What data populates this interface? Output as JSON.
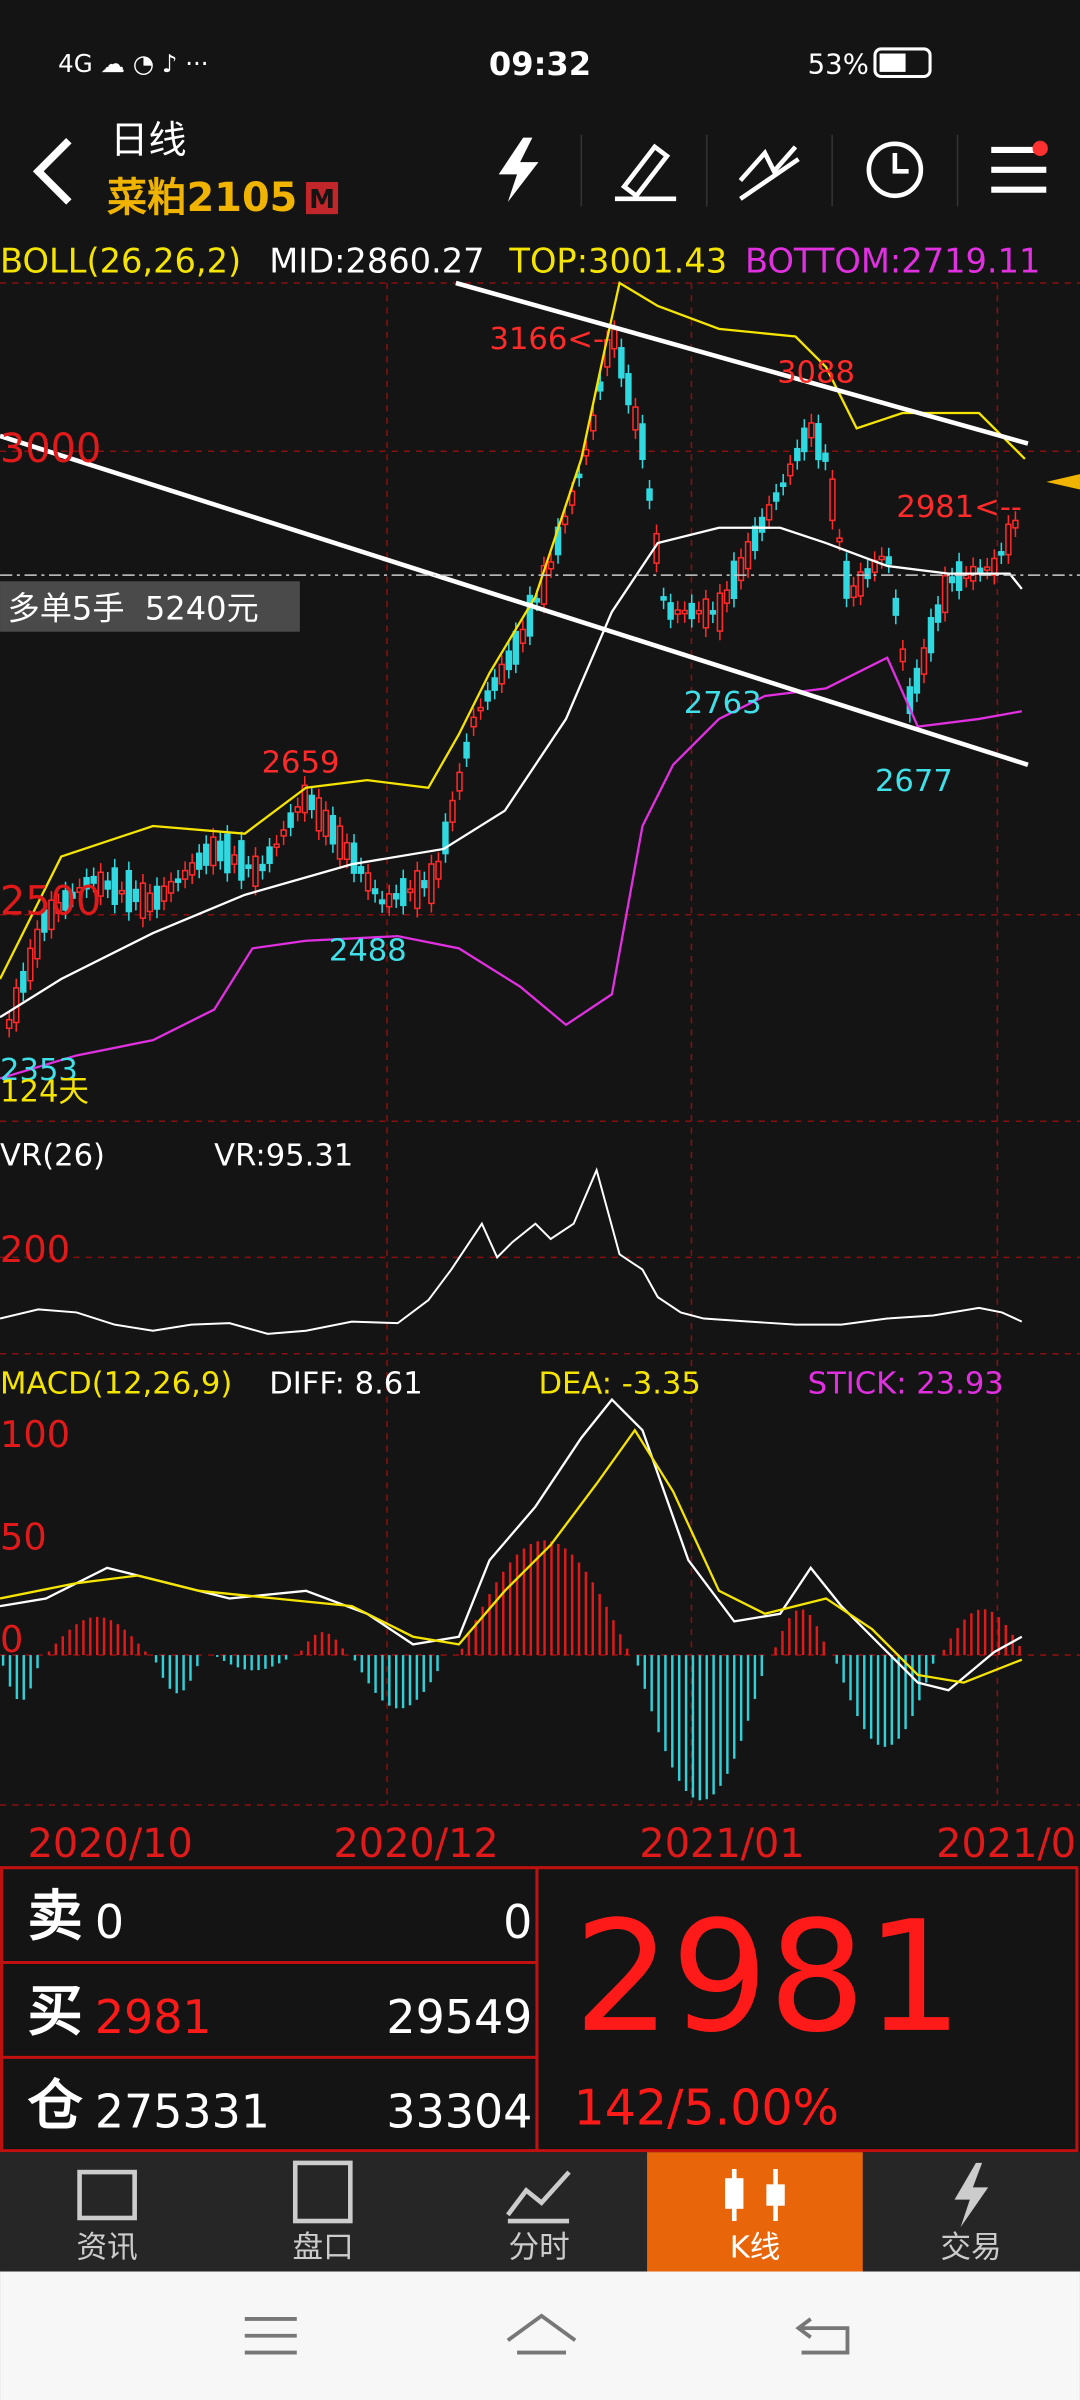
{
  "status_bar": {
    "time": "09:32",
    "battery": "53%"
  },
  "header": {
    "period": "日线",
    "symbol": "菜粕2105",
    "badge": "M"
  },
  "boll": {
    "name": "BOLL(26,26,2)",
    "mid": "MID:2860.27",
    "top": "TOP:3001.43",
    "bottom": "BOTTOM:2719.11"
  },
  "price_axis": [
    "3000",
    "2500"
  ],
  "annotations": [
    "3166<-",
    "3088",
    "2981<--",
    "2659",
    "2488",
    "2763",
    "2677",
    "2353",
    "124天"
  ],
  "position": "多单5手  5240元",
  "vr": {
    "name": "VR(26)",
    "value": "VR:95.31",
    "axis": [
      "200"
    ]
  },
  "macd": {
    "name": "MACD(12,26,9)",
    "diff": "DIFF: 8.61",
    "dea": "DEA: -3.35",
    "stick": "STICK: 23.93",
    "axis": [
      "100",
      "50",
      "0"
    ]
  },
  "dates": [
    "2020/10",
    "2020/12",
    "2021/01",
    "2021/0"
  ],
  "quote": {
    "rows": [
      [
        "卖",
        "0",
        "0"
      ],
      [
        "买",
        "2981",
        "29549"
      ],
      [
        "仓",
        "275331",
        "33304"
      ]
    ],
    "price": "2981",
    "change": "142/5.00%"
  },
  "tabs": [
    "资讯",
    "盘口",
    "分时",
    "K线",
    "交易"
  ]
}
